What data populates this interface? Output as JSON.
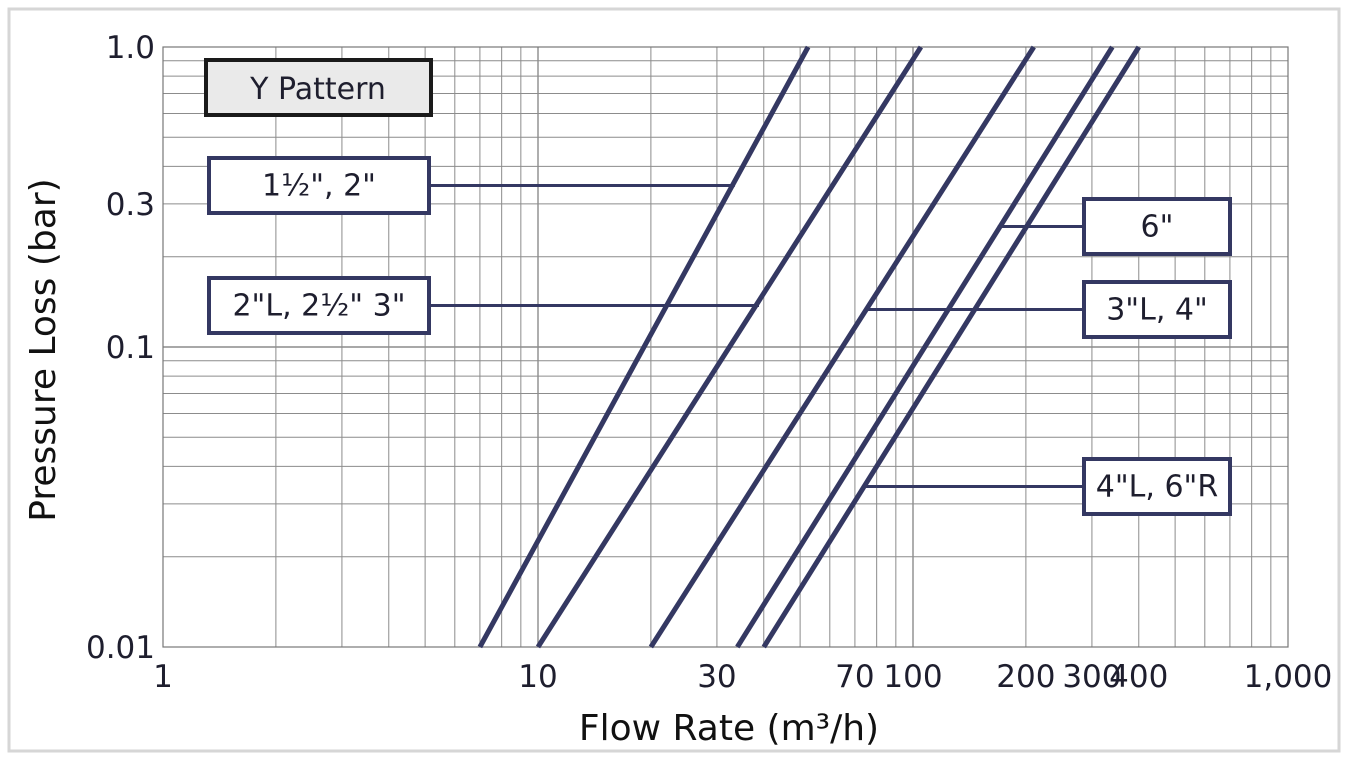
{
  "chart_data": {
    "type": "line",
    "title": "",
    "legend_title": "Y Pattern",
    "xlabel": "Flow Rate (m³/h)",
    "ylabel": "Pressure Loss (bar)",
    "xscale": "log",
    "yscale": "log",
    "xlim": [
      1,
      1000
    ],
    "ylim": [
      0.01,
      1.0
    ],
    "grid": true,
    "x_tick_values": [
      1,
      10,
      30,
      70,
      100,
      200,
      300,
      400,
      1000
    ],
    "x_tick_labels": [
      "1",
      "10",
      "30",
      "70",
      "100",
      "200",
      "300",
      "400",
      "1,000"
    ],
    "y_tick_values": [
      0.01,
      0.1,
      0.3,
      1.0
    ],
    "y_tick_labels": [
      "0.01",
      "0.1",
      "0.3",
      "1.0"
    ],
    "line_color": "#343862",
    "series": [
      {
        "name": "1½\", 2\"",
        "x": [
          7,
          52.5
        ],
        "y": [
          0.01,
          1.0
        ]
      },
      {
        "name": "2\"L, 2½\" 3\"",
        "x": [
          10,
          105
        ],
        "y": [
          0.01,
          1.0
        ]
      },
      {
        "name": "3\"L, 4\"",
        "x": [
          20,
          210
        ],
        "y": [
          0.01,
          1.0
        ]
      },
      {
        "name": "6\"",
        "x": [
          34,
          340
        ],
        "y": [
          0.01,
          1.0
        ]
      },
      {
        "name": "4\"L, 6\"R",
        "x": [
          40,
          400
        ],
        "y": [
          0.01,
          1.0
        ]
      }
    ],
    "annotations": [
      {
        "text": "1½\", 2\"",
        "target_series": 0,
        "at_y": 0.35
      },
      {
        "text": "2\"L, 2½\" 3\"",
        "target_series": 1,
        "at_y": 0.14
      },
      {
        "text": "6\"",
        "target_series": 3,
        "at_y": 0.25
      },
      {
        "text": "3\"L, 4\"",
        "target_series": 2,
        "at_y": 0.135
      },
      {
        "text": "4\"L, 6\"R",
        "target_series": 4,
        "at_y": 0.035
      }
    ]
  }
}
